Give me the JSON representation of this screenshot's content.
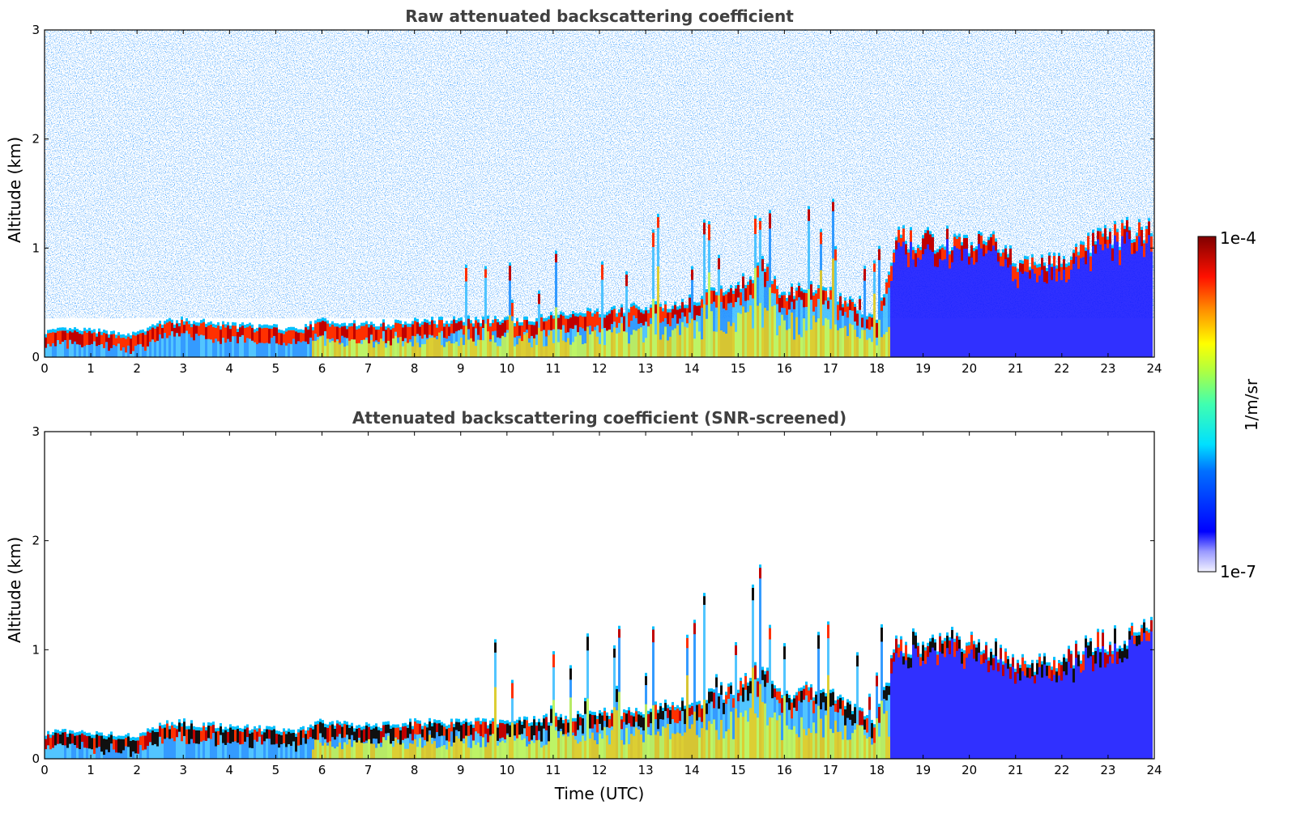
{
  "chart_data": [
    {
      "type": "heatmap",
      "title": "Raw attenuated backscattering coefficient",
      "xlabel": "",
      "ylabel": "Altitude (km)",
      "xlim": [
        0,
        24
      ],
      "ylim": [
        0,
        3
      ],
      "x_ticks": [
        "0",
        "1",
        "2",
        "3",
        "4",
        "5",
        "6",
        "7",
        "8",
        "9",
        "10",
        "11",
        "12",
        "13",
        "14",
        "15",
        "16",
        "17",
        "18",
        "19",
        "20",
        "21",
        "22",
        "23",
        "24"
      ],
      "y_ticks": [
        "0",
        "1",
        "2",
        "3"
      ],
      "grid": false,
      "layer_top_km": [
        [
          0,
          0.2
        ],
        [
          0.5,
          0.22
        ],
        [
          1,
          0.21
        ],
        [
          1.5,
          0.19
        ],
        [
          2,
          0.18
        ],
        [
          2.5,
          0.28
        ],
        [
          3,
          0.3
        ],
        [
          3.5,
          0.28
        ],
        [
          4,
          0.26
        ],
        [
          4.5,
          0.25
        ],
        [
          5,
          0.24
        ],
        [
          5.5,
          0.22
        ],
        [
          6,
          0.3
        ],
        [
          6.5,
          0.28
        ],
        [
          7,
          0.27
        ],
        [
          7.5,
          0.28
        ],
        [
          8,
          0.3
        ],
        [
          8.5,
          0.3
        ],
        [
          9,
          0.31
        ],
        [
          9.5,
          0.31
        ],
        [
          10,
          0.3
        ],
        [
          10.5,
          0.32
        ],
        [
          11,
          0.34
        ],
        [
          11.5,
          0.36
        ],
        [
          12,
          0.38
        ],
        [
          12.5,
          0.4
        ],
        [
          13,
          0.42
        ],
        [
          13.5,
          0.45
        ],
        [
          14,
          0.48
        ],
        [
          14.5,
          0.55
        ],
        [
          15,
          0.6
        ],
        [
          15.5,
          0.8
        ],
        [
          16,
          0.55
        ],
        [
          16.5,
          0.6
        ],
        [
          17,
          0.55
        ],
        [
          17.5,
          0.45
        ],
        [
          18,
          0.3
        ],
        [
          18.5,
          1.05
        ],
        [
          19,
          1.0
        ],
        [
          19.5,
          1.05
        ],
        [
          20,
          1.0
        ],
        [
          20.5,
          1.0
        ],
        [
          21,
          0.85
        ],
        [
          21.5,
          0.85
        ],
        [
          22,
          0.85
        ],
        [
          22.5,
          0.95
        ],
        [
          23,
          1.05
        ],
        [
          23.5,
          1.1
        ],
        [
          24,
          1.12
        ]
      ],
      "colorscale_range": [
        0,
        1
      ]
    },
    {
      "type": "heatmap",
      "title": "Attenuated backscattering coefficient (SNR-screened)",
      "xlabel": "Time (UTC)",
      "ylabel": "Altitude (km)",
      "xlim": [
        0,
        24
      ],
      "ylim": [
        0,
        3
      ],
      "x_ticks": [
        "0",
        "1",
        "2",
        "3",
        "4",
        "5",
        "6",
        "7",
        "8",
        "9",
        "10",
        "11",
        "12",
        "13",
        "14",
        "15",
        "16",
        "17",
        "18",
        "19",
        "20",
        "21",
        "22",
        "23",
        "24"
      ],
      "y_ticks": [
        "0",
        "1",
        "2",
        "3"
      ],
      "grid": false,
      "layer_top_km": [
        [
          0,
          0.2
        ],
        [
          0.5,
          0.22
        ],
        [
          1,
          0.21
        ],
        [
          1.5,
          0.19
        ],
        [
          2,
          0.18
        ],
        [
          2.5,
          0.28
        ],
        [
          3,
          0.3
        ],
        [
          3.5,
          0.28
        ],
        [
          4,
          0.26
        ],
        [
          4.5,
          0.25
        ],
        [
          5,
          0.24
        ],
        [
          5.5,
          0.22
        ],
        [
          6,
          0.3
        ],
        [
          6.5,
          0.28
        ],
        [
          7,
          0.27
        ],
        [
          7.5,
          0.28
        ],
        [
          8,
          0.3
        ],
        [
          8.5,
          0.3
        ],
        [
          9,
          0.31
        ],
        [
          9.5,
          0.31
        ],
        [
          10,
          0.3
        ],
        [
          10.5,
          0.32
        ],
        [
          11,
          0.34
        ],
        [
          11.5,
          0.36
        ],
        [
          12,
          0.38
        ],
        [
          12.5,
          0.4
        ],
        [
          13,
          0.42
        ],
        [
          13.5,
          0.45
        ],
        [
          14,
          0.48
        ],
        [
          14.5,
          0.55
        ],
        [
          15,
          0.6
        ],
        [
          15.5,
          0.8
        ],
        [
          16,
          0.55
        ],
        [
          16.5,
          0.6
        ],
        [
          17,
          0.55
        ],
        [
          17.5,
          0.45
        ],
        [
          18,
          0.3
        ],
        [
          18.5,
          1.05
        ],
        [
          19,
          1.0
        ],
        [
          19.5,
          1.05
        ],
        [
          20,
          1.0
        ],
        [
          20.5,
          1.0
        ],
        [
          21,
          0.85
        ],
        [
          21.5,
          0.85
        ],
        [
          22,
          0.85
        ],
        [
          22.5,
          0.95
        ],
        [
          23,
          1.05
        ],
        [
          23.5,
          1.1
        ],
        [
          24,
          1.12
        ]
      ],
      "colorscale_range": [
        0,
        1
      ]
    }
  ],
  "colorbar": {
    "label": "1/m/sr",
    "max_label": "1e-4",
    "min_label": "1e-7"
  }
}
